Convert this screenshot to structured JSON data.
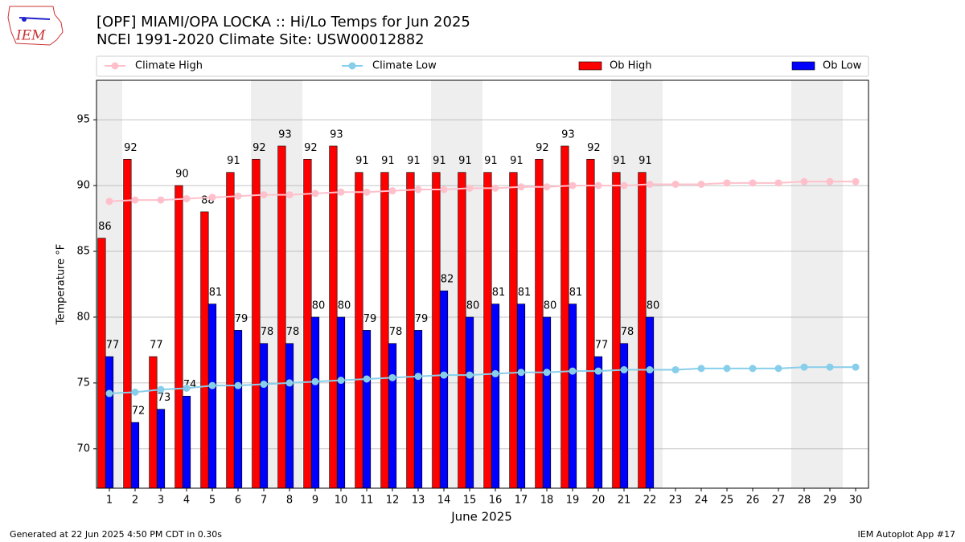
{
  "chart_data": {
    "type": "bar_line",
    "title": "[OPF] MIAMI/OPA LOCKA :: Hi/Lo Temps for Jun 2025",
    "subtitle": "NCEI 1991-2020 Climate Site: USW00012882",
    "xlabel": "June 2025",
    "ylabel": "Temperature °F",
    "x": [
      1,
      2,
      3,
      4,
      5,
      6,
      7,
      8,
      9,
      10,
      11,
      12,
      13,
      14,
      15,
      16,
      17,
      18,
      19,
      20,
      21,
      22,
      23,
      24,
      25,
      26,
      27,
      28,
      29,
      30
    ],
    "xlim": [
      0.5,
      30.5
    ],
    "xticks": [
      1,
      2,
      3,
      4,
      5,
      6,
      7,
      8,
      9,
      10,
      11,
      12,
      13,
      14,
      15,
      16,
      17,
      18,
      19,
      20,
      21,
      22,
      23,
      24,
      25,
      26,
      27,
      28,
      29,
      30
    ],
    "ylim": [
      67,
      98
    ],
    "yticks": [
      70,
      75,
      80,
      85,
      90,
      95
    ],
    "grid": true,
    "weekend_days": [
      1,
      7,
      8,
      14,
      15,
      21,
      22,
      28,
      29
    ],
    "series": [
      {
        "name": "Climate High",
        "kind": "line",
        "color": "#ffc0cb",
        "values": [
          88.8,
          88.9,
          88.9,
          89.0,
          89.1,
          89.2,
          89.3,
          89.3,
          89.4,
          89.5,
          89.5,
          89.6,
          89.7,
          89.7,
          89.8,
          89.8,
          89.9,
          89.9,
          90.0,
          90.0,
          90.0,
          90.1,
          90.1,
          90.1,
          90.2,
          90.2,
          90.2,
          90.3,
          90.3,
          90.3
        ]
      },
      {
        "name": "Climate Low",
        "kind": "line",
        "color": "#87ceeb",
        "values": [
          74.2,
          74.3,
          74.5,
          74.6,
          74.8,
          74.8,
          74.9,
          75.0,
          75.1,
          75.2,
          75.3,
          75.4,
          75.5,
          75.6,
          75.6,
          75.7,
          75.8,
          75.8,
          75.9,
          75.9,
          76.0,
          76.0,
          76.0,
          76.1,
          76.1,
          76.1,
          76.1,
          76.2,
          76.2,
          76.2
        ]
      },
      {
        "name": "Ob High",
        "kind": "bar",
        "color": "#ff0000",
        "values": [
          86,
          92,
          77,
          90,
          88,
          91,
          92,
          93,
          92,
          93,
          91,
          91,
          91,
          91,
          91,
          91,
          91,
          92,
          93,
          92,
          91,
          91,
          null,
          null,
          null,
          null,
          null,
          null,
          null,
          null
        ]
      },
      {
        "name": "Ob Low",
        "kind": "bar",
        "color": "#0000ff",
        "values": [
          77,
          72,
          73,
          74,
          81,
          79,
          78,
          78,
          80,
          80,
          79,
          78,
          79,
          82,
          80,
          81,
          81,
          80,
          81,
          77,
          78,
          80,
          null,
          null,
          null,
          null,
          null,
          null,
          null,
          null
        ]
      }
    ],
    "logo_text": "IEM",
    "footer_left": "Generated at 22 Jun 2025 4:50 PM CDT in 0.30s",
    "footer_right": "IEM Autoplot App #17"
  }
}
